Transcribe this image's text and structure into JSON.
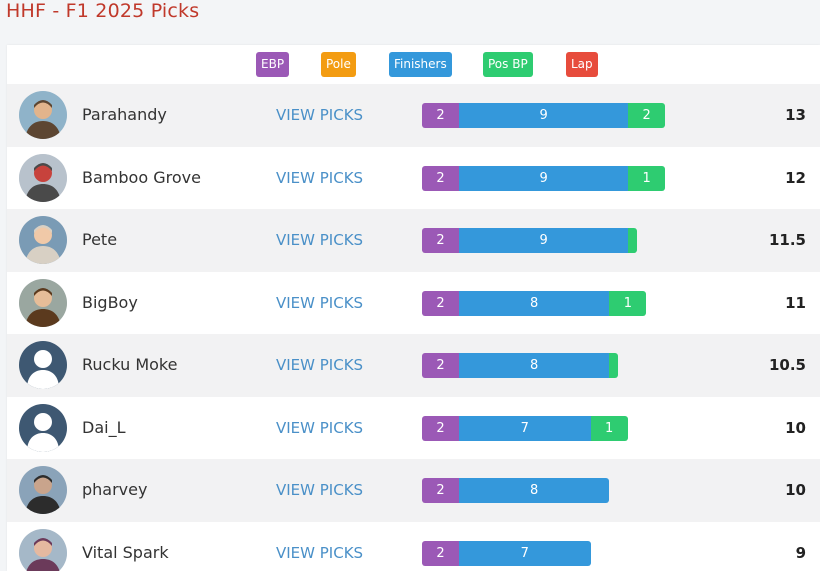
{
  "page": {
    "title": "HHF - F1 2025 Picks"
  },
  "legend": [
    {
      "label": "EBP",
      "color": "#9b59b6"
    },
    {
      "label": "Pole",
      "color": "#f39c12"
    },
    {
      "label": "Finishers",
      "color": "#3498db"
    },
    {
      "label": "Pos BP",
      "color": "#2ecc71"
    },
    {
      "label": "Lap",
      "color": "#e74c3c"
    }
  ],
  "view_label": "VIEW PICKS",
  "rows": [
    {
      "name": "Parahandy",
      "avatar": "photo-avatar",
      "ebp": "2",
      "finishers": "9",
      "pos_bp": "2",
      "total": "13"
    },
    {
      "name": "Bamboo Grove",
      "avatar": "photo-avatar",
      "ebp": "2",
      "finishers": "9",
      "pos_bp": "1",
      "total": "12"
    },
    {
      "name": "Pete",
      "avatar": "photo-avatar",
      "ebp": "2",
      "finishers": "9",
      "pos_bp": "",
      "total": "11.5"
    },
    {
      "name": "BigBoy",
      "avatar": "photo-avatar",
      "ebp": "2",
      "finishers": "8",
      "pos_bp": "1",
      "total": "11"
    },
    {
      "name": "Rucku Moke",
      "avatar": "default-avatar",
      "ebp": "2",
      "finishers": "8",
      "pos_bp": "",
      "total": "10.5"
    },
    {
      "name": "Dai_L",
      "avatar": "default-avatar",
      "ebp": "2",
      "finishers": "7",
      "pos_bp": "1",
      "total": "10"
    },
    {
      "name": "pharvey",
      "avatar": "photo-avatar",
      "ebp": "2",
      "finishers": "8",
      "pos_bp": "",
      "total": "10"
    },
    {
      "name": "Vital Spark",
      "avatar": "photo-avatar",
      "ebp": "2",
      "finishers": "7",
      "pos_bp": "",
      "total": "9"
    }
  ]
}
